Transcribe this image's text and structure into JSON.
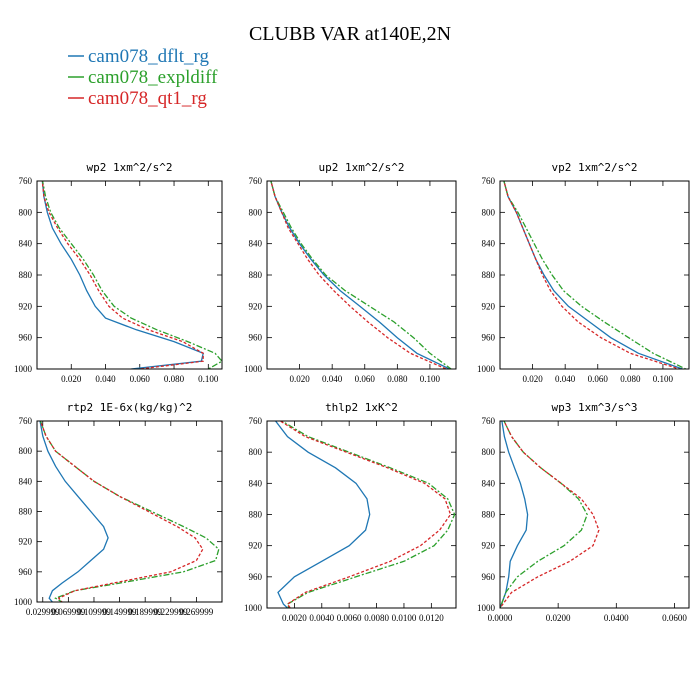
{
  "figure": {
    "title": "CLUBB VAR at140E,2N"
  },
  "legend": [
    {
      "name": "cam078_dflt_rg",
      "color": "#1f77b4"
    },
    {
      "name": "cam078_expldiff",
      "color": "#2ca02c"
    },
    {
      "name": "cam078_qt1_rg",
      "color": "#d62728"
    }
  ],
  "chart_data": [
    {
      "type": "line",
      "title": "wp2  1xm^2/s^2",
      "xlim": [
        0,
        0.108
      ],
      "ylim": [
        760,
        1000
      ],
      "yticks": [
        760,
        800,
        840,
        880,
        920,
        960,
        1000
      ],
      "xticks": [
        0.02,
        0.04,
        0.06,
        0.08,
        0.1
      ],
      "xticklabels": [
        "0.020",
        "0.040",
        "0.060",
        "0.080",
        "0.100"
      ],
      "y": [
        757,
        780,
        800,
        820,
        840,
        860,
        880,
        900,
        920,
        935,
        950,
        965,
        980,
        990,
        1000
      ],
      "series": [
        {
          "name": "cam078_dflt_rg",
          "x": [
            0.003,
            0.004,
            0.006,
            0.009,
            0.014,
            0.02,
            0.025,
            0.029,
            0.034,
            0.04,
            0.058,
            0.08,
            0.097,
            0.096,
            0.055
          ]
        },
        {
          "name": "cam078_expldiff",
          "x": [
            0.003,
            0.005,
            0.008,
            0.013,
            0.02,
            0.027,
            0.033,
            0.038,
            0.045,
            0.055,
            0.07,
            0.088,
            0.104,
            0.108,
            0.1
          ]
        },
        {
          "name": "cam078_qt1_rg",
          "x": [
            0.003,
            0.004,
            0.007,
            0.012,
            0.018,
            0.025,
            0.031,
            0.036,
            0.042,
            0.05,
            0.065,
            0.085,
            0.097,
            0.097,
            0.06
          ]
        }
      ]
    },
    {
      "type": "line",
      "title": "up2  1xm^2/s^2",
      "xlim": [
        0,
        0.116
      ],
      "ylim": [
        760,
        1000
      ],
      "yticks": [
        760,
        800,
        840,
        880,
        920,
        960,
        1000
      ],
      "xticks": [
        0.02,
        0.04,
        0.06,
        0.08,
        0.1
      ],
      "xticklabels": [
        "0.020",
        "0.040",
        "0.060",
        "0.080",
        "0.100"
      ],
      "y": [
        757,
        780,
        800,
        820,
        840,
        860,
        880,
        900,
        920,
        940,
        960,
        980,
        1000
      ],
      "series": [
        {
          "name": "cam078_dflt_rg",
          "x": [
            0.002,
            0.005,
            0.009,
            0.014,
            0.02,
            0.027,
            0.035,
            0.045,
            0.057,
            0.069,
            0.08,
            0.092,
            0.112
          ]
        },
        {
          "name": "cam078_expldiff",
          "x": [
            0.002,
            0.005,
            0.01,
            0.015,
            0.021,
            0.028,
            0.036,
            0.048,
            0.063,
            0.078,
            0.09,
            0.1,
            0.113
          ]
        },
        {
          "name": "cam078_qt1_rg",
          "x": [
            0.002,
            0.005,
            0.009,
            0.013,
            0.019,
            0.025,
            0.032,
            0.041,
            0.051,
            0.062,
            0.074,
            0.088,
            0.11
          ]
        }
      ]
    },
    {
      "type": "line",
      "title": "vp2  1xm^2/s^2",
      "xlim": [
        0,
        0.116
      ],
      "ylim": [
        760,
        1000
      ],
      "yticks": [
        760,
        800,
        840,
        880,
        920,
        960,
        1000
      ],
      "xticks": [
        0.02,
        0.04,
        0.06,
        0.08,
        0.1
      ],
      "xticklabels": [
        "0.020",
        "0.040",
        "0.060",
        "0.080",
        "0.100"
      ],
      "y": [
        757,
        780,
        800,
        820,
        840,
        860,
        880,
        900,
        920,
        940,
        960,
        980,
        1000
      ],
      "series": [
        {
          "name": "cam078_dflt_rg",
          "x": [
            0.002,
            0.005,
            0.01,
            0.014,
            0.018,
            0.022,
            0.027,
            0.033,
            0.042,
            0.055,
            0.068,
            0.085,
            0.112
          ]
        },
        {
          "name": "cam078_expldiff",
          "x": [
            0.002,
            0.005,
            0.011,
            0.016,
            0.021,
            0.026,
            0.032,
            0.039,
            0.05,
            0.064,
            0.079,
            0.094,
            0.114
          ]
        },
        {
          "name": "cam078_qt1_rg",
          "x": [
            0.002,
            0.005,
            0.01,
            0.014,
            0.018,
            0.022,
            0.026,
            0.031,
            0.038,
            0.048,
            0.062,
            0.08,
            0.11
          ]
        }
      ]
    },
    {
      "type": "line",
      "title": "rtp2  1E-6x(kg/kg)^2",
      "xlim": [
        0.021,
        0.31
      ],
      "ylim": [
        760,
        1000
      ],
      "yticks": [
        760,
        800,
        840,
        880,
        920,
        960,
        1000
      ],
      "xticks": [
        0.029999,
        0.069999,
        0.109999,
        0.149999,
        0.189999,
        0.229999,
        0.269999
      ],
      "xticklabels": [
        "0.029999",
        "0.069999",
        "0.109999",
        "0.149999",
        "0.189999",
        "0.229999",
        "0.269999"
      ],
      "y": [
        757,
        780,
        800,
        820,
        840,
        860,
        880,
        900,
        915,
        930,
        945,
        960,
        975,
        985,
        995,
        1000
      ],
      "series": [
        {
          "name": "cam078_dflt_rg",
          "x": [
            0.025,
            0.03,
            0.038,
            0.05,
            0.065,
            0.085,
            0.105,
            0.125,
            0.132,
            0.125,
            0.105,
            0.085,
            0.06,
            0.045,
            0.04,
            0.045
          ]
        },
        {
          "name": "cam078_expldiff",
          "x": [
            0.025,
            0.035,
            0.05,
            0.08,
            0.11,
            0.15,
            0.2,
            0.25,
            0.285,
            0.305,
            0.3,
            0.25,
            0.15,
            0.08,
            0.05,
            0.06
          ]
        },
        {
          "name": "cam078_qt1_rg",
          "x": [
            0.025,
            0.035,
            0.05,
            0.08,
            0.11,
            0.15,
            0.195,
            0.24,
            0.268,
            0.28,
            0.27,
            0.23,
            0.14,
            0.08,
            0.055,
            0.06
          ]
        }
      ]
    },
    {
      "type": "line",
      "title": "thlp2  1xK^2",
      "xlim": [
        0,
        0.0138
      ],
      "ylim": [
        760,
        1000
      ],
      "yticks": [
        760,
        800,
        840,
        880,
        920,
        960,
        1000
      ],
      "xticks": [
        0.002,
        0.004,
        0.006,
        0.008,
        0.01,
        0.012
      ],
      "xticklabels": [
        "0.0020",
        "0.0040",
        "0.0060",
        "0.0080",
        "0.0100",
        "0.0120"
      ],
      "y": [
        757,
        780,
        800,
        820,
        840,
        860,
        880,
        900,
        920,
        940,
        960,
        980,
        995,
        1000
      ],
      "series": [
        {
          "name": "cam078_dflt_rg",
          "x": [
            0.0005,
            0.0015,
            0.003,
            0.005,
            0.0065,
            0.0073,
            0.0075,
            0.0072,
            0.006,
            0.004,
            0.002,
            0.0008,
            0.0012,
            0.0015
          ]
        },
        {
          "name": "cam078_expldiff",
          "x": [
            0.0008,
            0.003,
            0.006,
            0.009,
            0.0118,
            0.0132,
            0.0137,
            0.0132,
            0.0122,
            0.01,
            0.0065,
            0.003,
            0.0015,
            0.0016
          ]
        },
        {
          "name": "cam078_qt1_rg",
          "x": [
            0.0007,
            0.0028,
            0.0058,
            0.0088,
            0.0115,
            0.013,
            0.0134,
            0.0126,
            0.0112,
            0.009,
            0.006,
            0.0028,
            0.0015,
            0.0017
          ]
        }
      ]
    },
    {
      "type": "line",
      "title": "wp3  1xm^3/s^3",
      "xlim": [
        0,
        0.065
      ],
      "ylim": [
        760,
        1000
      ],
      "yticks": [
        760,
        800,
        840,
        880,
        920,
        960,
        1000
      ],
      "xticks": [
        0,
        0.02,
        0.04,
        0.06
      ],
      "xticklabels": [
        "0.0000",
        "0.0200",
        "0.0400",
        "0.0600"
      ],
      "y": [
        757,
        780,
        800,
        820,
        840,
        860,
        880,
        900,
        920,
        940,
        960,
        980,
        995,
        1000
      ],
      "series": [
        {
          "name": "cam078_dflt_rg",
          "x": [
            0.0005,
            0.0015,
            0.003,
            0.005,
            0.007,
            0.0085,
            0.0095,
            0.009,
            0.006,
            0.0035,
            0.003,
            0.002,
            0.0005,
            0
          ]
        },
        {
          "name": "cam078_expldiff",
          "x": [
            0.001,
            0.004,
            0.008,
            0.014,
            0.021,
            0.027,
            0.03,
            0.028,
            0.022,
            0.013,
            0.006,
            0.002,
            0.0005,
            0
          ]
        },
        {
          "name": "cam078_qt1_rg",
          "x": [
            0.001,
            0.004,
            0.008,
            0.014,
            0.021,
            0.028,
            0.032,
            0.034,
            0.032,
            0.024,
            0.013,
            0.004,
            0.001,
            0
          ]
        }
      ]
    }
  ]
}
